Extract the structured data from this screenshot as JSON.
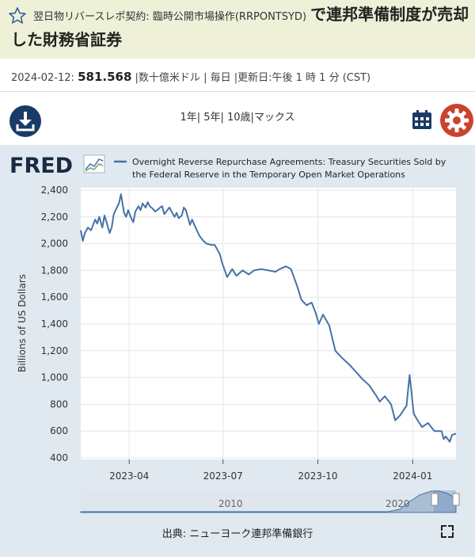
{
  "header": {
    "series_title_small": "翌日物リバースレポ契約: 臨時公開市場操作(RRPONTSYD)",
    "series_title_big": "で連邦準備制度が売却した財務省証券"
  },
  "observation": {
    "date": "2024-02-12:",
    "value": "581.568",
    "units": "|数十億米ドル",
    "frequency": "| 毎日",
    "updated": "|更新日:午後 1 時 1 分 (CST)"
  },
  "toolbar": {
    "ranges": "1年| 5年| 10歳|マックス"
  },
  "chart": {
    "brand": "FRED",
    "legend_line1": "Overnight Reverse Repurchase Agreements: Treasury Securities Sold by",
    "legend_line2": "the Federal Reserve in the Temporary Open Market Operations",
    "source": "出典: ニューヨーク連邦準備銀行",
    "navigator_labels": [
      "2010",
      "2020"
    ],
    "series_color": "#4572a7"
  },
  "chart_data": {
    "type": "line",
    "ylabel": "Billions of US Dollars",
    "ylim": [
      400,
      2400
    ],
    "yticks": [
      400,
      600,
      800,
      1000,
      1200,
      1400,
      1600,
      1800,
      2000,
      2200,
      2400
    ],
    "ytick_labels": [
      "400",
      "600",
      "800",
      "1,000",
      "1,200",
      "1,400",
      "1,600",
      "1,800",
      "2,000",
      "2,200",
      "2,400"
    ],
    "xlim": [
      "2023-02-13",
      "2024-02-12"
    ],
    "xticks": [
      "2023-04-01",
      "2023-07-01",
      "2023-10-01",
      "2024-01-01"
    ],
    "xtick_labels": [
      "2023-04",
      "2023-07",
      "2023-10",
      "2024-01"
    ],
    "series": [
      {
        "x": [
          "2023-02-13",
          "2023-02-15",
          "2023-02-17",
          "2023-02-20",
          "2023-02-23",
          "2023-02-27",
          "2023-03-01",
          "2023-03-03",
          "2023-03-06",
          "2023-03-08",
          "2023-03-10",
          "2023-03-13",
          "2023-03-15",
          "2023-03-17",
          "2023-03-20",
          "2023-03-22",
          "2023-03-24",
          "2023-03-27",
          "2023-03-29",
          "2023-03-31",
          "2023-04-03",
          "2023-04-05",
          "2023-04-07",
          "2023-04-10",
          "2023-04-12",
          "2023-04-14",
          "2023-04-17",
          "2023-04-19",
          "2023-04-21",
          "2023-04-24",
          "2023-04-26",
          "2023-04-28",
          "2023-05-01",
          "2023-05-03",
          "2023-05-05",
          "2023-05-08",
          "2023-05-10",
          "2023-05-12",
          "2023-05-15",
          "2023-05-17",
          "2023-05-19",
          "2023-05-22",
          "2023-05-24",
          "2023-05-26",
          "2023-05-30",
          "2023-06-01",
          "2023-06-05",
          "2023-06-08",
          "2023-06-12",
          "2023-06-15",
          "2023-06-20",
          "2023-06-23",
          "2023-06-28",
          "2023-06-30",
          "2023-07-05",
          "2023-07-10",
          "2023-07-14",
          "2023-07-20",
          "2023-07-26",
          "2023-07-31",
          "2023-08-07",
          "2023-08-14",
          "2023-08-21",
          "2023-08-25",
          "2023-08-31",
          "2023-09-05",
          "2023-09-11",
          "2023-09-15",
          "2023-09-20",
          "2023-09-25",
          "2023-09-29",
          "2023-10-02",
          "2023-10-06",
          "2023-10-12",
          "2023-10-18",
          "2023-10-24",
          "2023-10-31",
          "2023-11-06",
          "2023-11-13",
          "2023-11-20",
          "2023-11-27",
          "2023-11-30",
          "2023-12-05",
          "2023-12-11",
          "2023-12-15",
          "2023-12-20",
          "2023-12-26",
          "2023-12-29",
          "2024-01-02",
          "2024-01-05",
          "2024-01-10",
          "2024-01-16",
          "2024-01-22",
          "2024-01-29",
          "2024-01-31",
          "2024-02-02",
          "2024-02-06",
          "2024-02-08",
          "2024-02-12"
        ],
        "y": [
          2100,
          2020,
          2080,
          2120,
          2100,
          2180,
          2150,
          2200,
          2120,
          2210,
          2160,
          2080,
          2120,
          2220,
          2270,
          2300,
          2370,
          2230,
          2200,
          2250,
          2190,
          2160,
          2240,
          2280,
          2250,
          2300,
          2270,
          2310,
          2280,
          2260,
          2240,
          2250,
          2270,
          2280,
          2220,
          2250,
          2270,
          2240,
          2200,
          2230,
          2190,
          2210,
          2270,
          2250,
          2140,
          2180,
          2110,
          2060,
          2020,
          2000,
          1990,
          1990,
          1920,
          1860,
          1750,
          1810,
          1760,
          1800,
          1770,
          1800,
          1810,
          1800,
          1790,
          1810,
          1830,
          1810,
          1680,
          1580,
          1540,
          1560,
          1480,
          1400,
          1470,
          1390,
          1200,
          1150,
          1100,
          1050,
          990,
          940,
          860,
          820,
          860,
          800,
          680,
          720,
          790,
          1020,
          730,
          690,
          630,
          660,
          600,
          600,
          540,
          560,
          520,
          570,
          581.568
        ]
      }
    ]
  }
}
